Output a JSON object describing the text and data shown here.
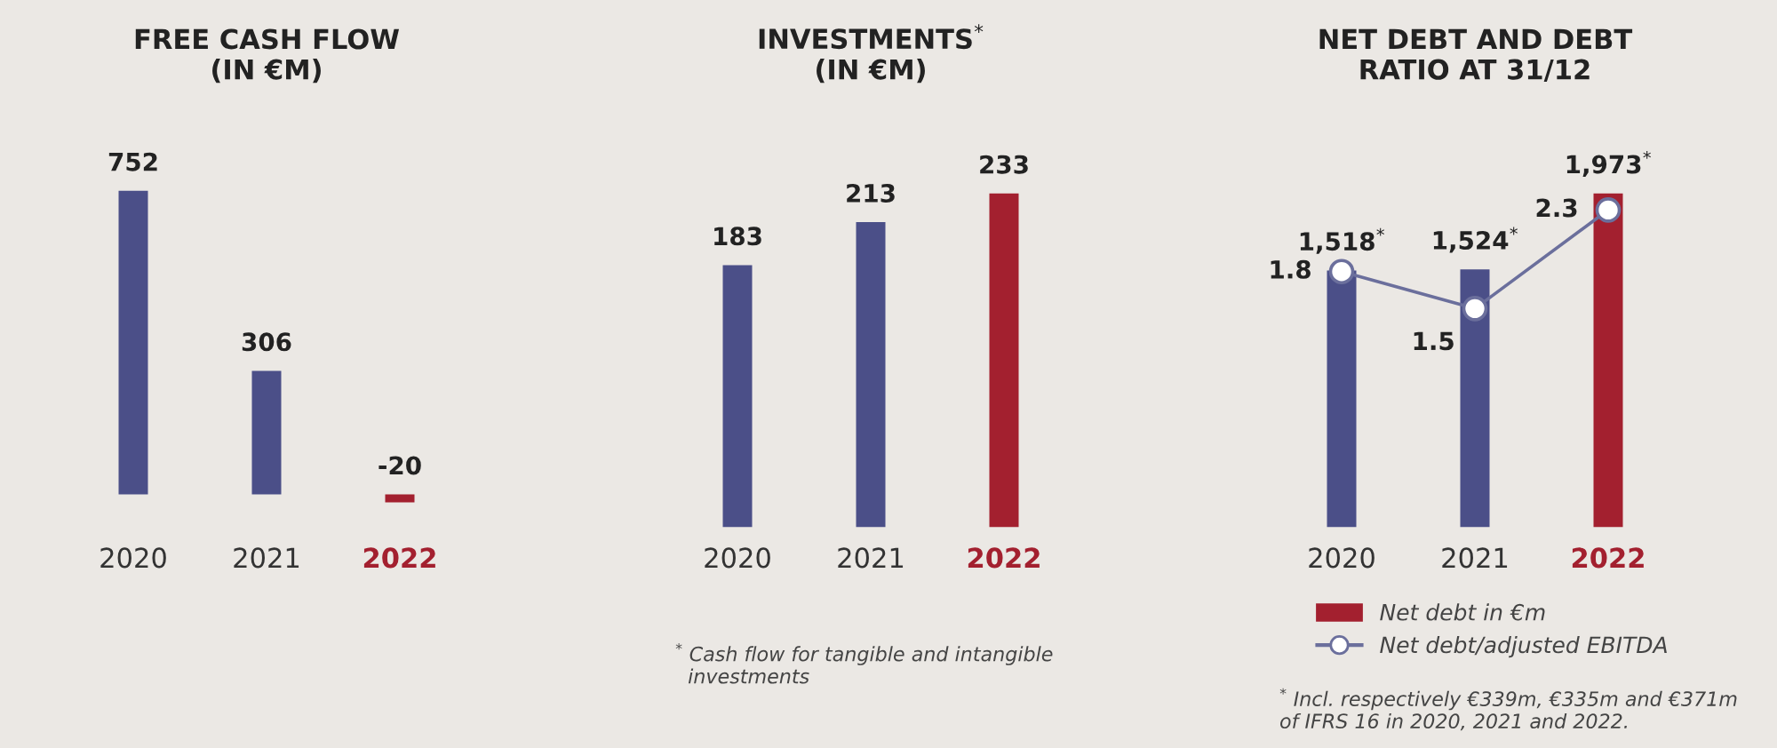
{
  "chart_data": [
    {
      "type": "bar",
      "title": "FREE CASH FLOW\n(IN €M)",
      "categories": [
        "2020",
        "2021",
        "2022"
      ],
      "values": [
        752,
        306,
        -20
      ],
      "colors": [
        "#4b4f88",
        "#4b4f88",
        "#a3202f"
      ],
      "data_labels": true,
      "tick_labels": "x",
      "grid": false,
      "legend": false
    },
    {
      "type": "bar",
      "title": "INVESTMENTS$^{*}$\n(IN €M)",
      "categories": [
        "2020",
        "2021",
        "2022"
      ],
      "values": [
        183,
        213,
        233
      ],
      "colors": [
        "#4b4f88",
        "#4b4f88",
        "#a3202f"
      ],
      "data_labels": true,
      "tick_labels": "x",
      "grid": false,
      "legend": false,
      "annotations": [
        "$^{*}$ Cash flow for tangible and intangible\n  investments"
      ]
    },
    {
      "type": "bar",
      "title": "NET DEBT AND DEBT\nRATIO AT 31/12",
      "categories": [
        "2020",
        "2021",
        "2022"
      ],
      "tick_labels": "x",
      "grid": false,
      "legend": "bottom",
      "marker": "circle",
      "series": [
        {
          "name": "Net debt in €m",
          "type": "bar",
          "color": "#a3202f",
          "colors": [
            "#4b4f88",
            "#4b4f88",
            "#a3202f"
          ],
          "values": [
            1518,
            1524,
            1973
          ],
          "value_labels": [
            "1,518$^{*}$",
            "1,524$^{*}$",
            "1,973$^{*}$"
          ]
        },
        {
          "name": "Net debt/adjusted EBITDA",
          "type": "line",
          "axis": "y2",
          "color": "#6b6f9c",
          "values": [
            1.8,
            1.5,
            2.3
          ],
          "value_labels": [
            "1.8",
            "1.5",
            "2.3"
          ]
        }
      ],
      "annotations": [
        "$^{*}$ Incl. respectively €339m, €335m and €371m\nof IFRS 16 in 2020, 2021 and 2022."
      ]
    }
  ]
}
